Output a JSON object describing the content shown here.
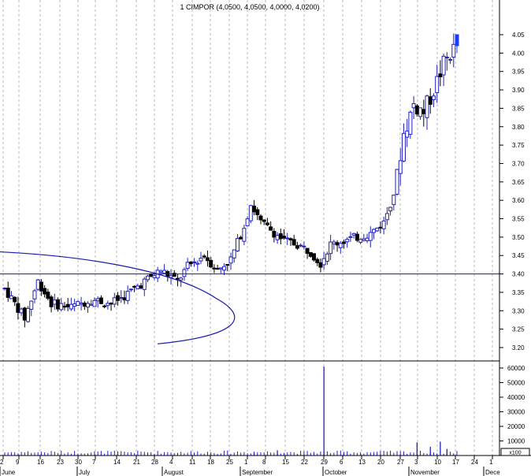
{
  "colors": {
    "up_candle": "#2020c0",
    "down_candle": "#000000",
    "highlight_candle": "#1a3cff",
    "support_line": "#1a1aa8",
    "volume": "#2020c0",
    "grid": "#b8b8b8",
    "axis": "#000000"
  },
  "chart_data": {
    "type": "candlestick",
    "title": "1 CIMPOR (4,0500, 4,0500, 4,0000, 4,0200)",
    "price_axis": {
      "range": [
        3.15,
        4.12
      ],
      "ticks": [
        "4.05",
        "4.00",
        "3.95",
        "3.90",
        "3.85",
        "3.80",
        "3.75",
        "3.70",
        "3.65",
        "3.60",
        "3.55",
        "3.50",
        "3.45",
        "3.40",
        "3.35",
        "3.30",
        "3.25",
        "3.20"
      ]
    },
    "volume_axis": {
      "range": [
        0,
        65000
      ],
      "ticks": [
        "60000",
        "50000",
        "40000",
        "30000",
        "20000",
        "10000"
      ],
      "multiplier_label": "x100"
    },
    "x_axis": {
      "day_ticks": [
        "2",
        "9",
        "16",
        "23",
        "30",
        "7",
        "14",
        "21",
        "28",
        "4",
        "11",
        "18",
        "25",
        "1",
        "8",
        "15",
        "22",
        "29",
        "6",
        "13",
        "20",
        "27",
        "3",
        "10",
        "17",
        "24",
        "1"
      ],
      "months": [
        "June",
        "July",
        "August",
        "September",
        "October",
        "November",
        "Dece"
      ]
    },
    "horizontal_line": {
      "price": 3.4
    },
    "arc_curve": {
      "price_top": 3.46,
      "price_mid": 3.29,
      "price_bottom": 3.21
    },
    "last_bar": {
      "open": 4.05,
      "high": 4.05,
      "low": 4.0,
      "close": 4.02
    },
    "anchors": [
      [
        0,
        3.36
      ],
      [
        6,
        3.28
      ],
      [
        10,
        3.38
      ],
      [
        14,
        3.32
      ],
      [
        20,
        3.31
      ],
      [
        26,
        3.33
      ],
      [
        32,
        3.32
      ],
      [
        36,
        3.34
      ],
      [
        42,
        3.38
      ],
      [
        47,
        3.41
      ],
      [
        52,
        3.38
      ],
      [
        55,
        3.42
      ],
      [
        60,
        3.45
      ],
      [
        64,
        3.41
      ],
      [
        68,
        3.44
      ],
      [
        72,
        3.53
      ],
      [
        74,
        3.59
      ],
      [
        77,
        3.54
      ],
      [
        80,
        3.52
      ],
      [
        84,
        3.49
      ],
      [
        88,
        3.48
      ],
      [
        92,
        3.46
      ],
      [
        95,
        3.43
      ],
      [
        98,
        3.48
      ],
      [
        102,
        3.49
      ],
      [
        106,
        3.5
      ],
      [
        110,
        3.51
      ],
      [
        114,
        3.54
      ],
      [
        117,
        3.62
      ],
      [
        120,
        3.78
      ],
      [
        123,
        3.86
      ],
      [
        126,
        3.84
      ],
      [
        129,
        3.9
      ],
      [
        132,
        3.97
      ],
      [
        134,
        4.0
      ],
      [
        136,
        4.02
      ]
    ],
    "volume_spikes": [
      {
        "bar": 96,
        "value": 61000
      },
      {
        "bar": 124,
        "value": 9000
      },
      {
        "bar": 128,
        "value": 6000
      },
      {
        "bar": 131,
        "value": 9500
      },
      {
        "bar": 133,
        "value": 4500
      },
      {
        "bar": 82,
        "value": 3500
      },
      {
        "bar": 75,
        "value": 2500
      }
    ]
  }
}
